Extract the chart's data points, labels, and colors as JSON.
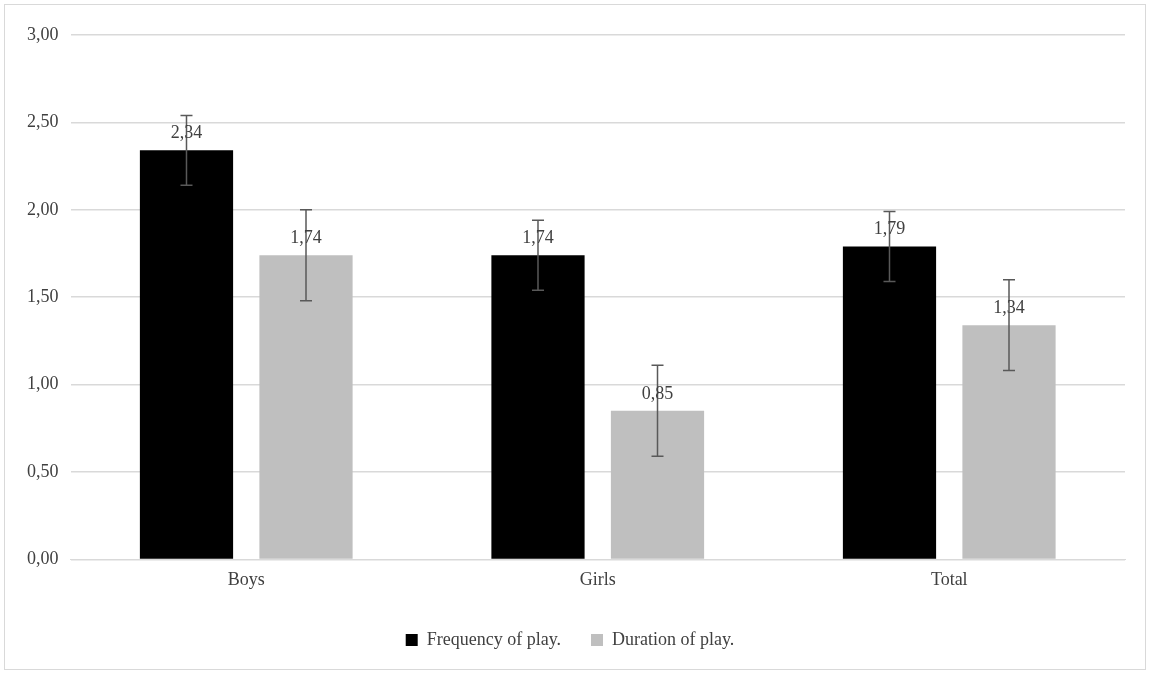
{
  "chart_data": {
    "type": "bar",
    "categories": [
      "Boys",
      "Girls",
      "Total"
    ],
    "series": [
      {
        "name": "Frequency of play.",
        "color": "#000000",
        "values": [
          2.34,
          1.74,
          1.79
        ],
        "value_labels": [
          "2,34",
          "1,74",
          "1,79"
        ],
        "errors": [
          0.2,
          0.2,
          0.2
        ]
      },
      {
        "name": "Duration of play.",
        "color": "#bfbfbf",
        "values": [
          1.74,
          0.85,
          1.34
        ],
        "value_labels": [
          "1,74",
          "0,85",
          "1,34"
        ],
        "errors": [
          0.26,
          0.26,
          0.26
        ]
      }
    ],
    "ylim": [
      0,
      3
    ],
    "yticks": [
      {
        "value": 0,
        "label": "0,00"
      },
      {
        "value": 0.5,
        "label": "0,50"
      },
      {
        "value": 1,
        "label": "1,00"
      },
      {
        "value": 1.5,
        "label": "1,50"
      },
      {
        "value": 2,
        "label": "2,00"
      },
      {
        "value": 2.5,
        "label": "2,50"
      },
      {
        "value": 3,
        "label": "3,00"
      }
    ],
    "grid": "y",
    "legend": "bottom"
  }
}
